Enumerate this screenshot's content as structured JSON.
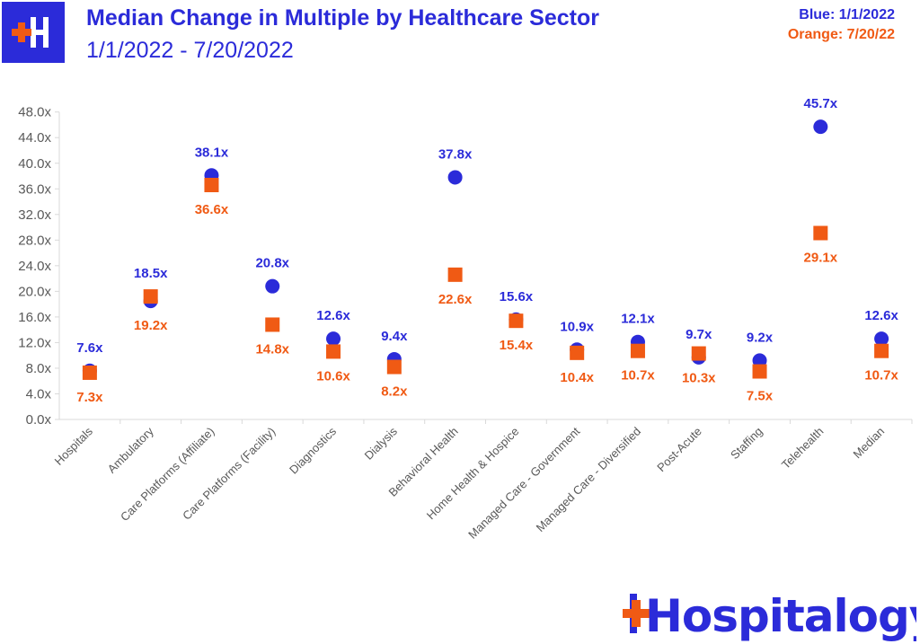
{
  "header": {
    "title": "Median Change in Multiple by Healthcare Sector",
    "subtitle": "1/1/2022  - 7/20/2022",
    "legend_blue": "Blue: 1/1/2022",
    "legend_orange": "Orange: 7/20/22"
  },
  "brand": {
    "name": "Hospitalogy"
  },
  "colors": {
    "blue": "#2b2bd9",
    "orange": "#f05a14"
  },
  "chart_data": {
    "type": "scatter",
    "title": "Median Change in Multiple by Healthcare Sector",
    "subtitle": "1/1/2022  - 7/20/2022",
    "categories": [
      "Hospitals",
      "Ambulatory",
      "Care Platforms (Affiliate)",
      "Care Platforms (Facility)",
      "Diagnostics",
      "Dialysis",
      "Behavioral Health",
      "Home Health & Hospice",
      "Managed Care - Government",
      "Managed Care - Diversified",
      "Post-Acute",
      "Staffing",
      "Telehealth",
      "Median"
    ],
    "series": [
      {
        "name": "Blue: 1/1/2022",
        "color": "#2b2bd9",
        "marker": "circle",
        "values": [
          7.6,
          18.5,
          38.1,
          20.8,
          12.6,
          9.4,
          37.8,
          15.6,
          10.9,
          12.1,
          9.7,
          9.2,
          45.7,
          12.6
        ],
        "labels": [
          "7.6x",
          "18.5x",
          "38.1x",
          "20.8x",
          "12.6x",
          "9.4x",
          "37.8x",
          "15.6x",
          "10.9x",
          "12.1x",
          "9.7x",
          "9.2x",
          "45.7x",
          "12.6x"
        ]
      },
      {
        "name": "Orange: 7/20/22",
        "color": "#f05a14",
        "marker": "square",
        "values": [
          7.3,
          19.2,
          36.6,
          14.8,
          10.6,
          8.2,
          22.6,
          15.4,
          10.4,
          10.7,
          10.3,
          7.5,
          29.1,
          10.7
        ],
        "labels": [
          "7.3x",
          "19.2x",
          "36.6x",
          "14.8x",
          "10.6x",
          "8.2x",
          "22.6x",
          "15.4x",
          "10.4x",
          "10.7x",
          "10.3x",
          "7.5x",
          "29.1x",
          "10.7x"
        ]
      }
    ],
    "yticks": [
      "0.0x",
      "4.0x",
      "8.0x",
      "12.0x",
      "16.0x",
      "20.0x",
      "24.0x",
      "28.0x",
      "32.0x",
      "36.0x",
      "40.0x",
      "44.0x",
      "48.0x"
    ],
    "ylim": [
      0,
      48
    ],
    "grid": false
  }
}
